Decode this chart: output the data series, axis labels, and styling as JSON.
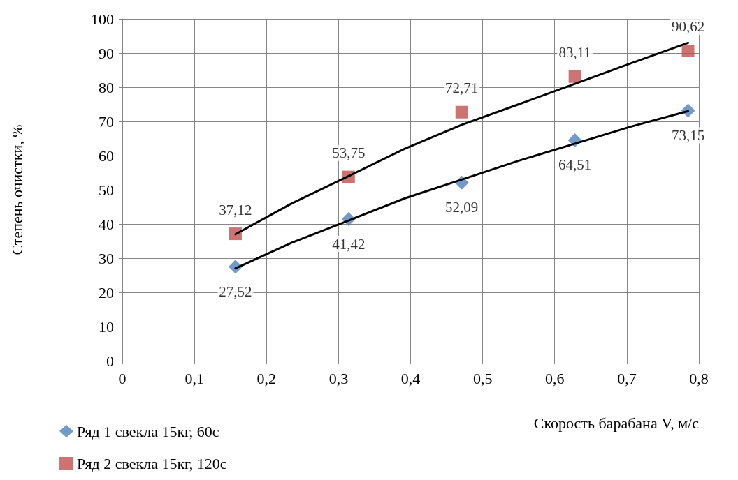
{
  "chart_data": {
    "type": "scatter",
    "xlabel": "Скорость барабана V, м/с",
    "ylabel": "Степень очистки, %",
    "xlim": [
      0,
      0.8
    ],
    "xticks": [
      0,
      {
        "value": 0.1,
        "label": "0,1"
      },
      {
        "value": 0.2,
        "label": "0,2"
      },
      {
        "value": 0.3,
        "label": "0,3"
      },
      {
        "value": 0.4,
        "label": "0,4"
      },
      {
        "value": 0.5,
        "label": "0,5"
      },
      {
        "value": 0.6,
        "label": "0,6"
      },
      {
        "value": 0.7,
        "label": "0,7"
      },
      {
        "value": 0.8,
        "label": "0,8"
      }
    ],
    "ylim": [
      0,
      100
    ],
    "yticks": [
      0,
      10,
      20,
      30,
      40,
      50,
      60,
      70,
      80,
      90,
      100
    ],
    "grid": true,
    "legend": "bottom left",
    "series": [
      {
        "name": "Ряд 1 свекла 15кг, 60с",
        "color": "#4f81bd",
        "marker": "diamond",
        "x": [
          0.157,
          0.314,
          0.471,
          0.628,
          0.785
        ],
        "values": [
          27.52,
          41.42,
          52.09,
          64.51,
          73.15
        ],
        "value_labels": [
          "27,52",
          "41,42",
          "52,09",
          "64,51",
          "73,15"
        ]
      },
      {
        "name": "Ряд 2 свекла 15кг, 120с",
        "color": "#c0504d",
        "marker": "square",
        "x": [
          0.157,
          0.314,
          0.471,
          0.628,
          0.785
        ],
        "values": [
          37.12,
          53.75,
          72.71,
          83.11,
          90.62
        ],
        "value_labels": [
          "37,12",
          "53,75",
          "72,71",
          "83,11",
          "90,62"
        ]
      },
      {
        "type": "line",
        "color": "#000000",
        "marker": "none",
        "x": [
          0.157,
          0.235,
          0.314,
          0.392,
          0.471,
          0.55,
          0.628,
          0.706,
          0.785
        ],
        "values": [
          27,
          34.5,
          41,
          47.5,
          53,
          58.5,
          63.5,
          68.5,
          73
        ]
      },
      {
        "type": "line",
        "color": "#000000",
        "marker": "none",
        "x": [
          0.157,
          0.235,
          0.314,
          0.392,
          0.471,
          0.55,
          0.628,
          0.706,
          0.785
        ],
        "values": [
          37,
          46,
          54,
          62,
          69,
          75,
          81,
          87,
          93
        ]
      }
    ]
  }
}
